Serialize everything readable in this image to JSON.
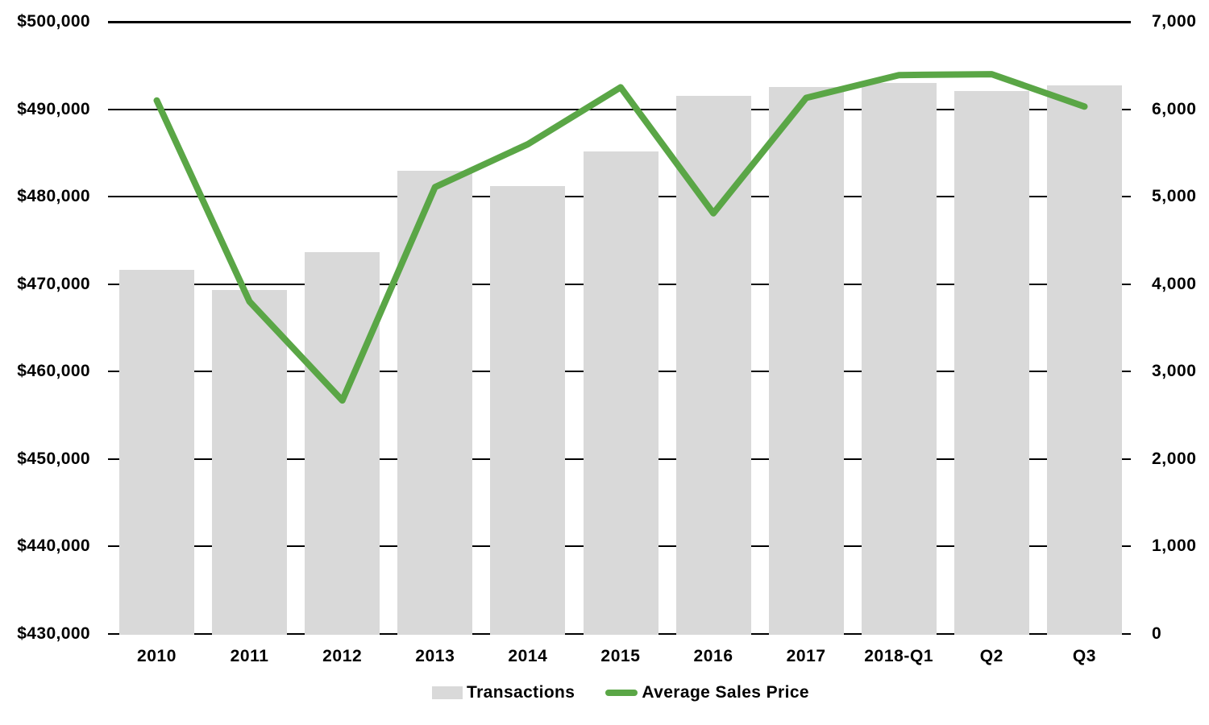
{
  "chart_data": {
    "type": "combo",
    "categories": [
      "2010",
      "2011",
      "2012",
      "2013",
      "2014",
      "2015",
      "2016",
      "2017",
      "2018-Q1",
      "Q2",
      "Q3"
    ],
    "series": [
      {
        "name": "Transactions",
        "type": "bar",
        "axis": "right",
        "color": "#d9d9d9",
        "values": [
          4160,
          3930,
          4370,
          5300,
          5120,
          5520,
          6150,
          6250,
          6300,
          6210,
          6270
        ]
      },
      {
        "name": "Average Sales Price",
        "type": "line",
        "axis": "left",
        "color": "#5aa646",
        "values": [
          491000,
          468000,
          456700,
          481100,
          486000,
          492500,
          478100,
          491300,
          493900,
          494000,
          490300
        ]
      }
    ],
    "left_axis": {
      "min": 430000,
      "max": 500000,
      "step": 10000,
      "tick_labels": [
        "$430,000",
        "$440,000",
        "$450,000",
        "$460,000",
        "$470,000",
        "$480,000",
        "$490,000",
        "$500,000"
      ]
    },
    "right_axis": {
      "min": 0,
      "max": 7000,
      "step": 1000,
      "tick_labels": [
        "0",
        "1,000",
        "2,000",
        "3,000",
        "4,000",
        "5,000",
        "6,000",
        "7,000"
      ]
    },
    "grid": true,
    "legend_position": "bottom",
    "title": ""
  },
  "colors": {
    "bar_fill": "#d9d9d9",
    "line_stroke": "#5aa646",
    "gridline": "#000000",
    "text": "#000000",
    "background": "#ffffff"
  }
}
